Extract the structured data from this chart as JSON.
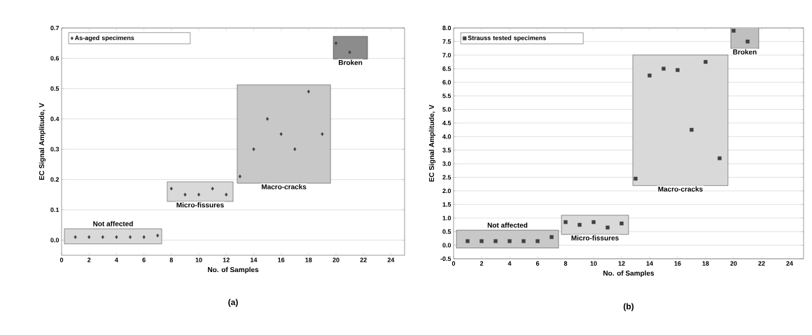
{
  "chart_data": [
    {
      "type": "scatter",
      "title": "(a)",
      "xlabel": "No. of Samples",
      "ylabel": "EC Signal Amplitude, V",
      "x": [
        1,
        2,
        3,
        4,
        5,
        6,
        7,
        8,
        9,
        10,
        11,
        12,
        13,
        14,
        15,
        16,
        17,
        18,
        19,
        20,
        21
      ],
      "series": [
        {
          "name": "As-aged specimens",
          "color": "#404040",
          "values": [
            0.01,
            0.01,
            0.01,
            0.01,
            0.01,
            0.01,
            0.015,
            0.17,
            0.15,
            0.15,
            0.17,
            0.15,
            0.21,
            0.3,
            0.4,
            0.35,
            0.3,
            0.49,
            0.35,
            0.65,
            0.62
          ]
        }
      ],
      "marker": "diamond",
      "legend": "top left",
      "grid": "y",
      "xlim": [
        0,
        25
      ],
      "xticks": [
        0,
        2,
        4,
        6,
        8,
        10,
        12,
        14,
        16,
        18,
        20,
        22,
        24
      ],
      "ylim": [
        -0.05,
        0.7
      ],
      "yticks": [
        {
          "value": 0,
          "label": "0.0"
        },
        0.1,
        0.2,
        0.3,
        0.4,
        0.5,
        0.6,
        0.7
      ],
      "bands": [
        {
          "axis": "x",
          "from": 0.2,
          "to": 7.3,
          "label": "Not affected",
          "color": "#d9d9d9"
        },
        {
          "axis": "x",
          "from": 7.7,
          "to": 12.5,
          "label": "Micro-fissures",
          "color": "#d9d9d9"
        },
        {
          "axis": "x",
          "from": 12.8,
          "to": 19.6,
          "label": "Macro-cracks",
          "color": "#c8c8c8"
        },
        {
          "axis": "x",
          "from": 19.8,
          "to": 22.3,
          "label": "Broken",
          "color": "#8c8c8c"
        }
      ]
    },
    {
      "type": "scatter",
      "title": "(b)",
      "xlabel": "No. of Samples",
      "ylabel": "EC Signal Amplitude, V",
      "x": [
        1,
        2,
        3,
        4,
        5,
        6,
        7,
        8,
        9,
        10,
        11,
        12,
        13,
        14,
        15,
        16,
        17,
        18,
        19,
        20,
        21
      ],
      "series": [
        {
          "name": "Strauss tested specimens",
          "color": "#404040",
          "values": [
            0.15,
            0.15,
            0.15,
            0.15,
            0.15,
            0.15,
            0.3,
            0.85,
            0.75,
            0.85,
            0.65,
            0.8,
            2.45,
            6.25,
            6.5,
            6.45,
            4.25,
            6.75,
            3.2,
            7.9,
            7.5
          ]
        }
      ],
      "marker": "square",
      "legend": "top left",
      "grid": "y",
      "xlim": [
        0,
        25
      ],
      "xticks": [
        0,
        2,
        4,
        6,
        8,
        10,
        12,
        14,
        16,
        18,
        20,
        22,
        24
      ],
      "ylim": [
        -0.5,
        8.0
      ],
      "yticks": [
        -0.5,
        {
          "value": 0,
          "label": "0.0"
        },
        0.5,
        {
          "value": 1,
          "label": "1.0"
        },
        1.5,
        {
          "value": 2,
          "label": "2.0"
        },
        2.5,
        {
          "value": 3,
          "label": "3.0"
        },
        3.5,
        {
          "value": 4,
          "label": "4.0"
        },
        4.5,
        {
          "value": 5,
          "label": "5.0"
        },
        5.5,
        {
          "value": 6,
          "label": "6.0"
        },
        6.5,
        {
          "value": 7,
          "label": "7.0"
        },
        7.5,
        {
          "value": 8,
          "label": "8.0"
        }
      ],
      "bands": [
        {
          "axis": "x",
          "from": 0.2,
          "to": 7.5,
          "label": "Not affected",
          "color": "#c8c8c8"
        },
        {
          "axis": "x",
          "from": 7.7,
          "to": 12.5,
          "label": "Micro-fissures",
          "color": "#d9d9d9"
        },
        {
          "axis": "x",
          "from": 12.8,
          "to": 19.6,
          "label": "Macro-cracks",
          "color": "#d9d9d9"
        },
        {
          "axis": "x",
          "from": 19.8,
          "to": 21.8,
          "label": "Broken",
          "color": "#bfbfbf"
        }
      ]
    }
  ]
}
